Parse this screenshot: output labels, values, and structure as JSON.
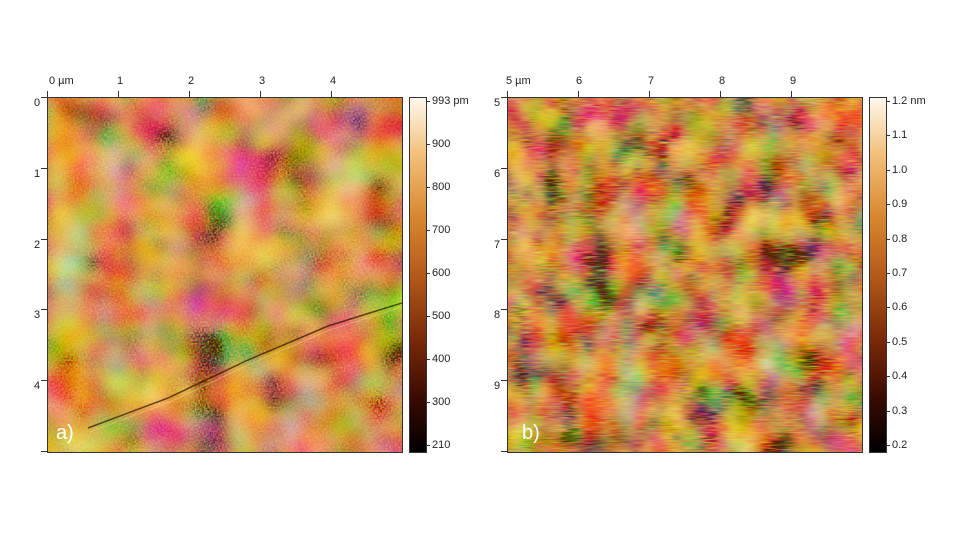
{
  "panels": [
    {
      "letter": "a)",
      "x_ticks": [
        "0 µm",
        "1",
        "2",
        "3",
        "4"
      ],
      "y_ticks": [
        "0",
        "1",
        "2",
        "3",
        "4"
      ],
      "colorbar_ticks": [
        "993 pm",
        "900",
        "800",
        "700",
        "600",
        "500",
        "400",
        "300",
        "210"
      ],
      "colormap": [
        "#000000",
        "#3a0a02",
        "#7a2a08",
        "#b45a1a",
        "#d8862e",
        "#f2c07a",
        "#fff8ec"
      ]
    },
    {
      "letter": "b)",
      "x_ticks": [
        "5 µm",
        "6",
        "7",
        "8",
        "9"
      ],
      "y_ticks": [
        "5",
        "6",
        "7",
        "8",
        "9"
      ],
      "colorbar_ticks": [
        "1.2 nm",
        "1.1",
        "1.0",
        "0.9",
        "0.8",
        "0.7",
        "0.6",
        "0.5",
        "0.4",
        "0.3",
        "0.2"
      ],
      "colormap": [
        "#000000",
        "#3a0a02",
        "#7a2a08",
        "#b45a1a",
        "#d8862e",
        "#f2c07a",
        "#fff8ec"
      ]
    }
  ]
}
